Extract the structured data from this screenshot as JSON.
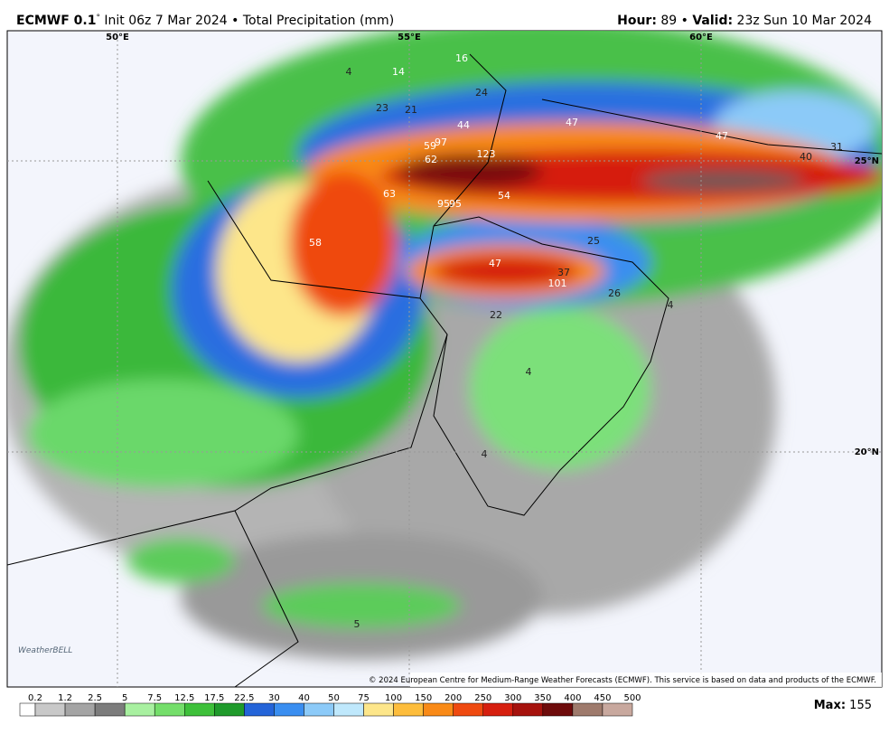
{
  "header": {
    "model": "ECMWF 0.1",
    "degree": "°",
    "init": " Init 06z 7 Mar 2024 • Total Precipitation (mm)",
    "hour_key": "Hour:",
    "hour": " 89 • ",
    "valid_key": "Valid:",
    "valid": " 23z Sun 10 Mar 2024"
  },
  "map": {
    "lon_labels": [
      "50°E",
      "55°E",
      "60°E"
    ],
    "lat_labels": [
      "25°N",
      "20°N"
    ],
    "point_labels": [
      "4",
      "14",
      "16",
      "24",
      "23",
      "21",
      "44",
      "47",
      "47",
      "59",
      "97",
      "62",
      "123",
      "40",
      "31",
      "63",
      "95",
      "95",
      "54",
      "58",
      "25",
      "47",
      "37",
      "101",
      "26",
      "4",
      "22",
      "4",
      "4",
      "5"
    ],
    "copyright": "© 2024 European Centre for Medium-Range Weather Forecasts (ECMWF). This service is based on data and products of the ECMWF.",
    "logo": "WeatherBELL"
  },
  "colorbar": {
    "labels": [
      "0.2",
      "1.2",
      "2.5",
      "5",
      "7.5",
      "12.5",
      "17.5",
      "22.5",
      "30",
      "40",
      "50",
      "75",
      "100",
      "150",
      "200",
      "250",
      "300",
      "350",
      "400",
      "450",
      "500"
    ],
    "colors": [
      "#ffffff",
      "#c8c8c8",
      "#a4a4a4",
      "#7c7c7c",
      "#a8f0a0",
      "#74de6a",
      "#3ec03a",
      "#1f9a2b",
      "#2464d8",
      "#3a8ef0",
      "#8ccaf8",
      "#bfe8fc",
      "#fde68a",
      "#fdbd3c",
      "#f98a17",
      "#ef4a10",
      "#d61f0f",
      "#a6120d",
      "#6e0b0b",
      "#9e7a6c",
      "#c8a89e"
    ],
    "max_key": "Max:",
    "max": " 155"
  }
}
